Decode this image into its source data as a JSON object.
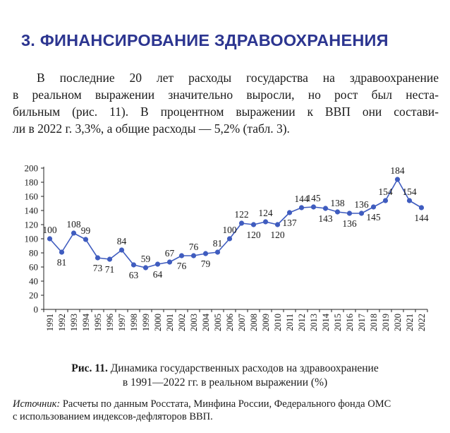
{
  "section": {
    "title": "3. ФИНАНСИРОВАНИЕ ЗДРАВООХРАНЕНИЯ"
  },
  "paragraph": {
    "lines": [
      "В последние 20 лет расходы государства на здравоохранение",
      "в реальном выражении значительно выросли, но рост был неста-",
      "бильным (рис. 11). В процентном выражении к ВВП они состави-",
      "ли в 2022 г. 3,3%, а общие расходы — 5,2% (табл. 3)."
    ]
  },
  "figure": {
    "label": "Рис. 11.",
    "caption_rest": " Динамика государственных расходов на здравоохранение",
    "caption_line2": "в 1991—2022 гг. в реальном выражении (%)",
    "source_label": "Источник:",
    "source_rest": " Расчеты по данным Росстата, Минфина России, Федерального фонда ОМС",
    "source_line2": "с использованием индексов-дефляторов ВВП."
  },
  "chart_data": {
    "type": "line",
    "x": [
      "1991",
      "1992",
      "1993",
      "1994",
      "1995",
      "1996",
      "1997",
      "1998",
      "1999",
      "2000",
      "2001",
      "2002",
      "2003",
      "2004",
      "2005",
      "2006",
      "2007",
      "2008",
      "2009",
      "2010",
      "2011",
      "2012",
      "2013",
      "2014",
      "2015",
      "2016",
      "2017",
      "2018",
      "2019",
      "2020",
      "2021",
      "2022"
    ],
    "series": [
      {
        "name": "Государственные расходы на здравоохранение",
        "values": [
          100,
          81,
          108,
          99,
          73,
          71,
          84,
          63,
          59,
          64,
          67,
          76,
          76,
          79,
          81,
          100,
          122,
          120,
          124,
          120,
          137,
          144,
          145,
          143,
          138,
          136,
          136,
          145,
          154,
          184,
          154,
          144
        ],
        "label_position": [
          "above",
          "below",
          "above",
          "above",
          "below",
          "below",
          "above",
          "below",
          "above",
          "below",
          "above",
          "below",
          "above",
          "below",
          "above",
          "above",
          "above",
          "below",
          "above",
          "below",
          "below",
          "above",
          "above",
          "below",
          "above",
          "below",
          "above",
          "below",
          "above",
          "above",
          "above",
          "below"
        ]
      }
    ],
    "ylim": [
      0,
      200
    ],
    "yticks": [
      "0",
      "20",
      "40",
      "60",
      "80",
      "100",
      "120",
      "140",
      "160",
      "180",
      "200"
    ],
    "title": "",
    "xlabel": "",
    "ylabel": "",
    "line_color": "#3f5cbf",
    "marker_color": "#3f5cbf"
  }
}
